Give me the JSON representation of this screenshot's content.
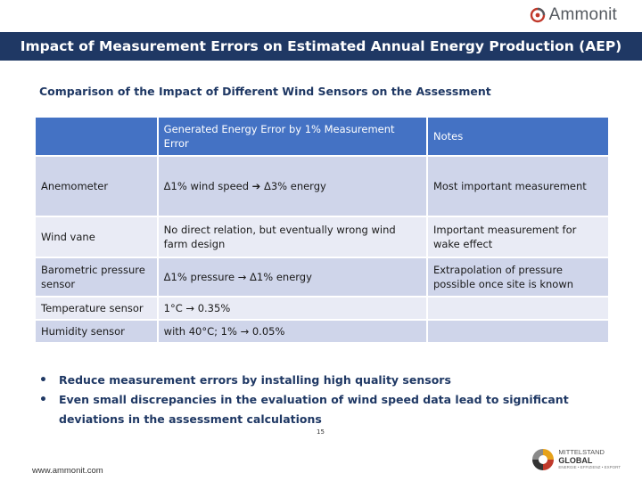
{
  "header": {
    "logo_text": "Ammonit",
    "title": "Impact of Measurement Errors on Estimated Annual Energy Production (AEP)"
  },
  "subtitle": "Comparison of the Impact of Different Wind Sensors on the Assessment",
  "table": {
    "headers": [
      "",
      "Generated Energy Error by 1% Measurement Error",
      "Notes"
    ],
    "rows": [
      [
        "Anemometer",
        "Δ1% wind speed ➔ Δ3% energy",
        "Most important measurement"
      ],
      [
        "Wind vane",
        "No direct relation, but eventually wrong wind farm design",
        "Important measurement for wake effect"
      ],
      [
        "Barometric pressure sensor",
        "Δ1% pressure → Δ1% energy",
        "Extrapolation of pressure possible once site is known"
      ],
      [
        "Temperature sensor",
        "1°C  →  0.35%",
        ""
      ],
      [
        "Humidity sensor",
        "with 40°C;  1%  → 0.05%",
        ""
      ]
    ]
  },
  "bullets": [
    "Reduce measurement errors by installing high quality sensors",
    "Even small discrepancies in the evaluation of wind speed data lead to significant deviations in the assessment calculations"
  ],
  "footer": {
    "page_number": "15",
    "url": "www.ammonit.com",
    "partner_logo": {
      "line1": "MITTELSTAND",
      "line2": "GLOBAL",
      "line3": "ENERGIE • EFFIZIENZ • EXPORT"
    }
  },
  "colors": {
    "title_bar": "#1f3864",
    "table_header": "#4472c4",
    "row_dark": "#cfd5ea",
    "row_light": "#e9ebf5",
    "accent": "#c0392b"
  }
}
